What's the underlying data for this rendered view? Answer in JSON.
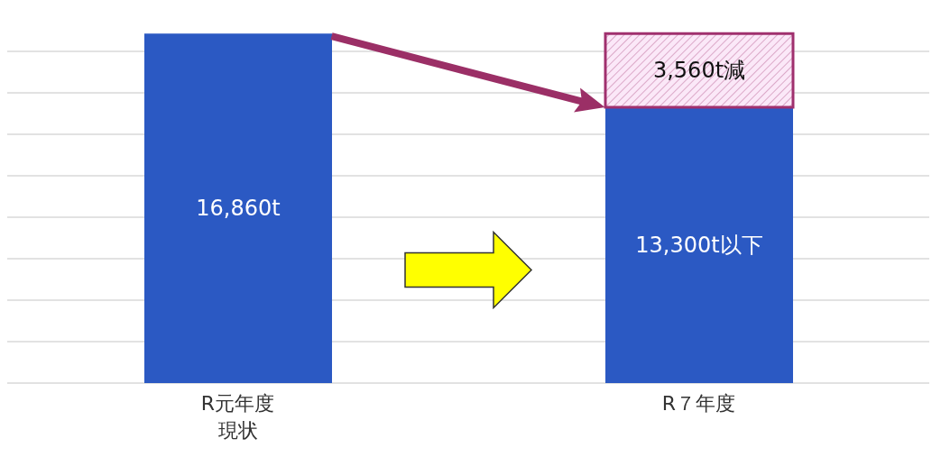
{
  "chart_data": {
    "type": "bar",
    "stacked": true,
    "categories": [
      "R元年度現状",
      "R７年度"
    ],
    "series": [
      {
        "color": "#2b59c3",
        "values": [
          16860,
          13300
        ],
        "value_labels": [
          "16,860t",
          "13,300t以下"
        ]
      },
      {
        "color": "#a0306e",
        "values": [
          null,
          3560
        ],
        "value_labels": [
          null,
          "3,560t減"
        ]
      }
    ],
    "ylim": [
      0,
      17000
    ],
    "yticks": [
      {
        "value": 0,
        "label": null
      },
      {
        "value": 2000,
        "label": null
      },
      {
        "value": 4000,
        "label": null
      },
      {
        "value": 6000,
        "label": null
      },
      {
        "value": 8000,
        "label": null
      },
      {
        "value": 10000,
        "label": null
      },
      {
        "value": 12000,
        "label": null
      },
      {
        "value": 14000,
        "label": null
      },
      {
        "value": 16000,
        "label": null
      }
    ],
    "grid": "y",
    "tick_labels": "x"
  }
}
